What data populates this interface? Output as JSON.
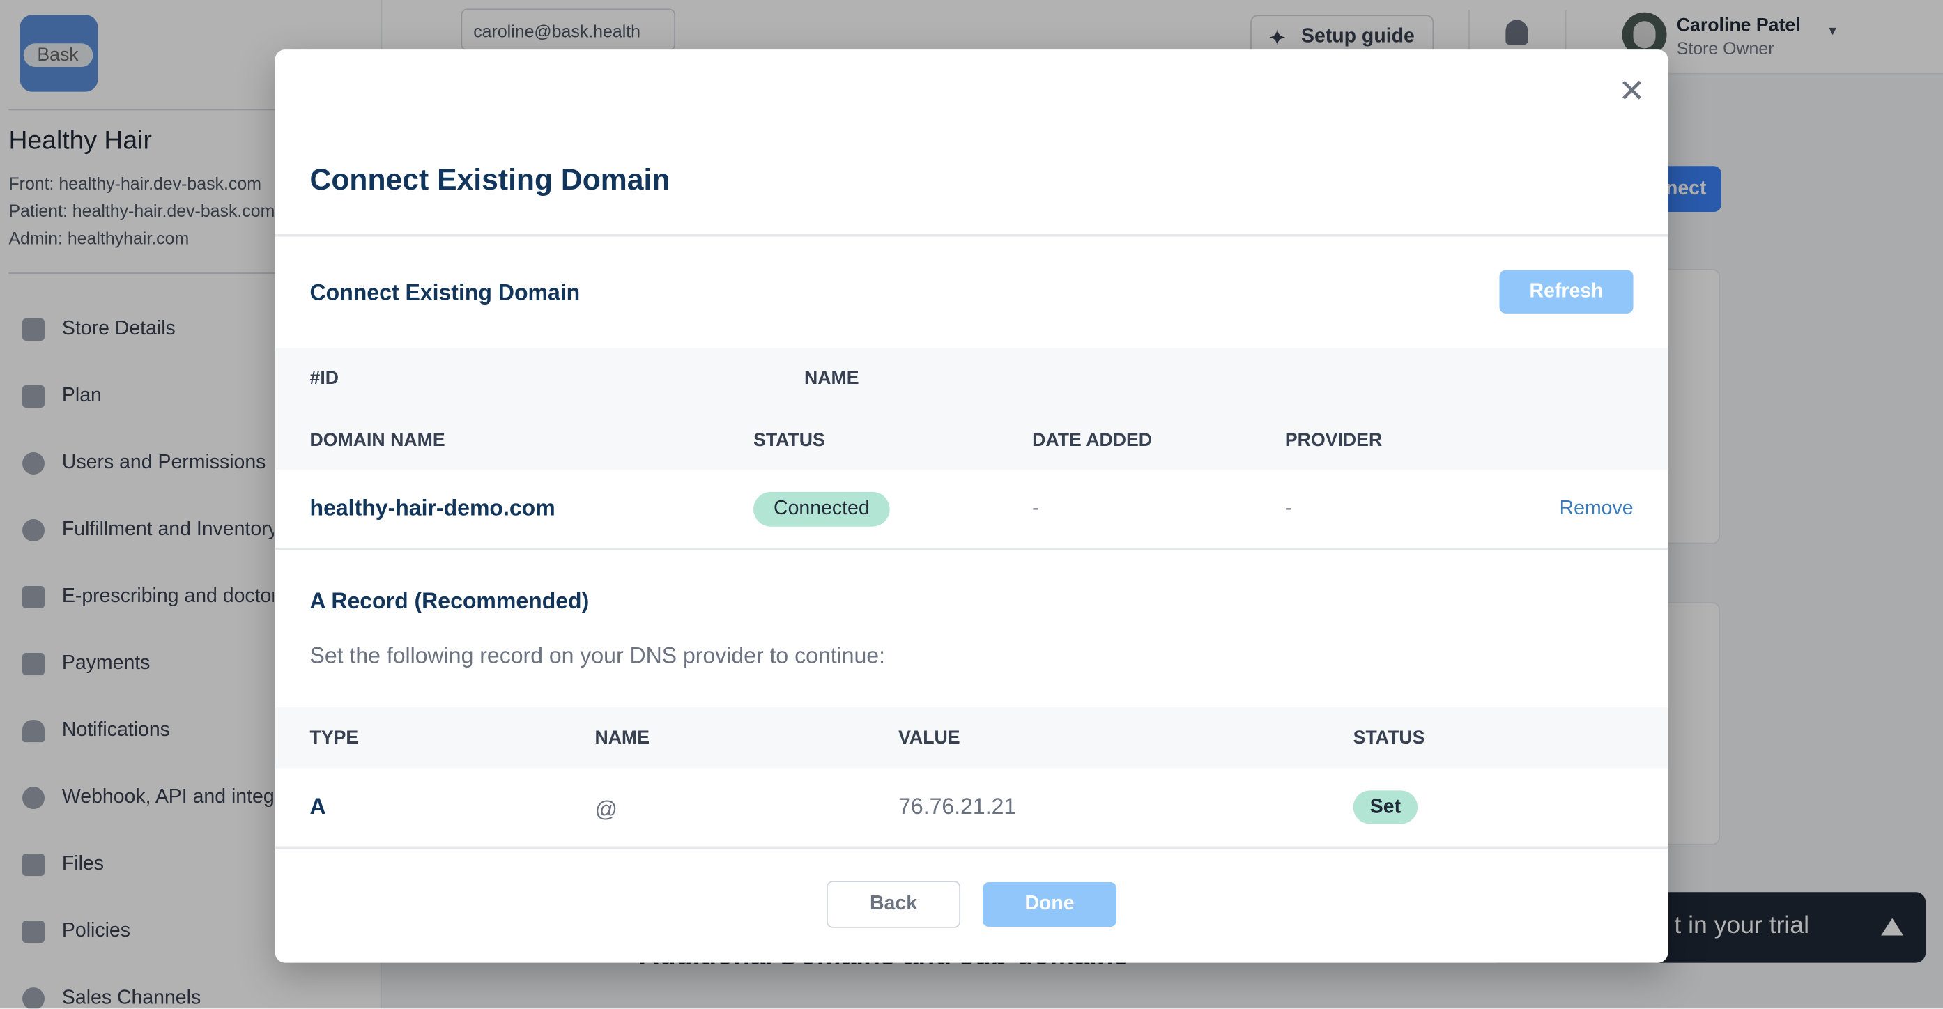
{
  "sidebar": {
    "logo_text": "Bask",
    "store_name": "Healthy Hair",
    "front": "Front: healthy-hair.dev-bask.com",
    "patient": "Patient: healthy-hair.dev-bask.com",
    "admin": "Admin: healthyhair.com",
    "items": [
      {
        "label": "Store Details",
        "icon": "store-icon"
      },
      {
        "label": "Plan",
        "icon": "plan-icon"
      },
      {
        "label": "Users and Permissions",
        "icon": "user-icon"
      },
      {
        "label": "Fulfillment and Inventory",
        "icon": "fulfillment-icon"
      },
      {
        "label": "E-prescribing and doctors",
        "icon": "prescription-icon"
      },
      {
        "label": "Payments",
        "icon": "payments-icon"
      },
      {
        "label": "Notifications",
        "icon": "bell-icon"
      },
      {
        "label": "Webhook, API and integrations",
        "icon": "webhook-icon"
      },
      {
        "label": "Files",
        "icon": "file-icon"
      },
      {
        "label": "Policies",
        "icon": "policy-icon"
      },
      {
        "label": "Sales Channels",
        "icon": "sales-channels-icon"
      }
    ]
  },
  "header": {
    "email": "caroline@bask.health",
    "setup_guide": "Setup guide",
    "user_name": "Caroline Patel",
    "user_role": "Store Owner"
  },
  "background": {
    "connect_button": "Connect",
    "section_title": "Additional Domains and sub-domains",
    "trial_text": "t in your trial"
  },
  "modal": {
    "title": "Connect Existing Domain",
    "section_title": "Connect Existing Domain",
    "refresh": "Refresh",
    "domain_table": {
      "headers_row1": [
        "#ID",
        "NAME"
      ],
      "headers_row2": [
        "DOMAIN NAME",
        "STATUS",
        "DATE ADDED",
        "PROVIDER"
      ],
      "row": {
        "domain": "healthy-hair-demo.com",
        "status": "Connected",
        "date_added": "-",
        "provider": "-",
        "action": "Remove"
      }
    },
    "a_record": {
      "title": "A Record (Recommended)",
      "description": "Set the following record on your DNS provider to continue:",
      "headers": [
        "TYPE",
        "NAME",
        "VALUE",
        "STATUS"
      ],
      "row": {
        "type": "A",
        "name": "@",
        "value": "76.76.21.21",
        "status": "Set"
      }
    },
    "back": "Back",
    "done": "Done"
  },
  "colors": {
    "primary_light": "#90c6fa",
    "title": "#12355b",
    "badge_green": "#b2e5d3",
    "link": "#3b7ab8"
  }
}
